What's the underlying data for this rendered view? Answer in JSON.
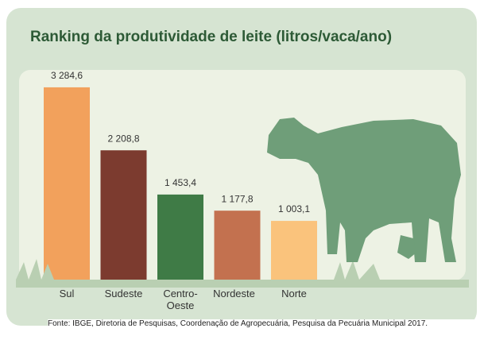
{
  "chart_data": {
    "type": "bar",
    "title": "Ranking da produtividade de leite (litros/vaca/ano)",
    "categories": [
      "Sul",
      "Sudeste",
      "Centro-Oeste",
      "Nordeste",
      "Norte"
    ],
    "values": [
      3284.6,
      2208.8,
      1453.4,
      1177.8,
      1003.1
    ],
    "value_labels": [
      "3 284,6",
      "2 208,8",
      "1 453,4",
      "1 177,8",
      "1 003,1"
    ],
    "colors": [
      "#f2a15c",
      "#7c3b2f",
      "#3f7b46",
      "#c3714f",
      "#fac37c"
    ],
    "source": "Fonte: IBGE, Diretoria de Pesquisas, Coordenação de Agropecuária, Pesquisa da Pecuária Municipal 2017."
  }
}
